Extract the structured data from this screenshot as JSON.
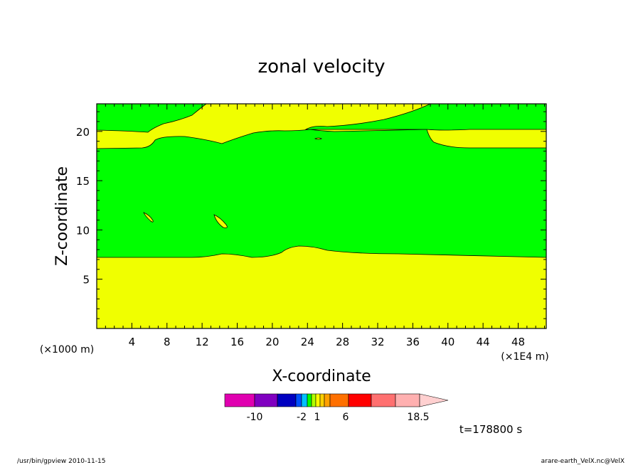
{
  "chart_data": {
    "type": "contour",
    "title": "zonal velocity",
    "xlabel": "X-coordinate",
    "ylabel": "Z-coordinate",
    "x_scale_note": "(×1E4 m)",
    "y_scale_note": "(×1000 m)",
    "xlim": [
      0,
      51.2
    ],
    "ylim": [
      0,
      22.8
    ],
    "x_ticks": [
      "4",
      "8",
      "12",
      "16",
      "20",
      "24",
      "28",
      "32",
      "36",
      "40",
      "44",
      "48"
    ],
    "y_ticks": [
      "5",
      "10",
      "15",
      "20"
    ],
    "time_label": "t=178800 s",
    "colorbar": {
      "labels": [
        "-10",
        "-2",
        "1",
        "6",
        "18.5"
      ],
      "colors": [
        "#e000b0",
        "#8000c0",
        "#0000c0",
        "#0050ff",
        "#00c0ff",
        "#00ff00",
        "#b0ff00",
        "#ffff00",
        "#ffd000",
        "#ffa000",
        "#ff7000",
        "#ff0000",
        "#ff7070",
        "#ffb0b0",
        "#ffd0d0"
      ]
    },
    "fill_colors": {
      "positive": "#f0ff00",
      "near_zero": "#00ff00"
    },
    "footer_left": "/usr/bin/gpview   2010-11-15",
    "footer_right": "arare-earth_VelX.nc@VelX"
  }
}
